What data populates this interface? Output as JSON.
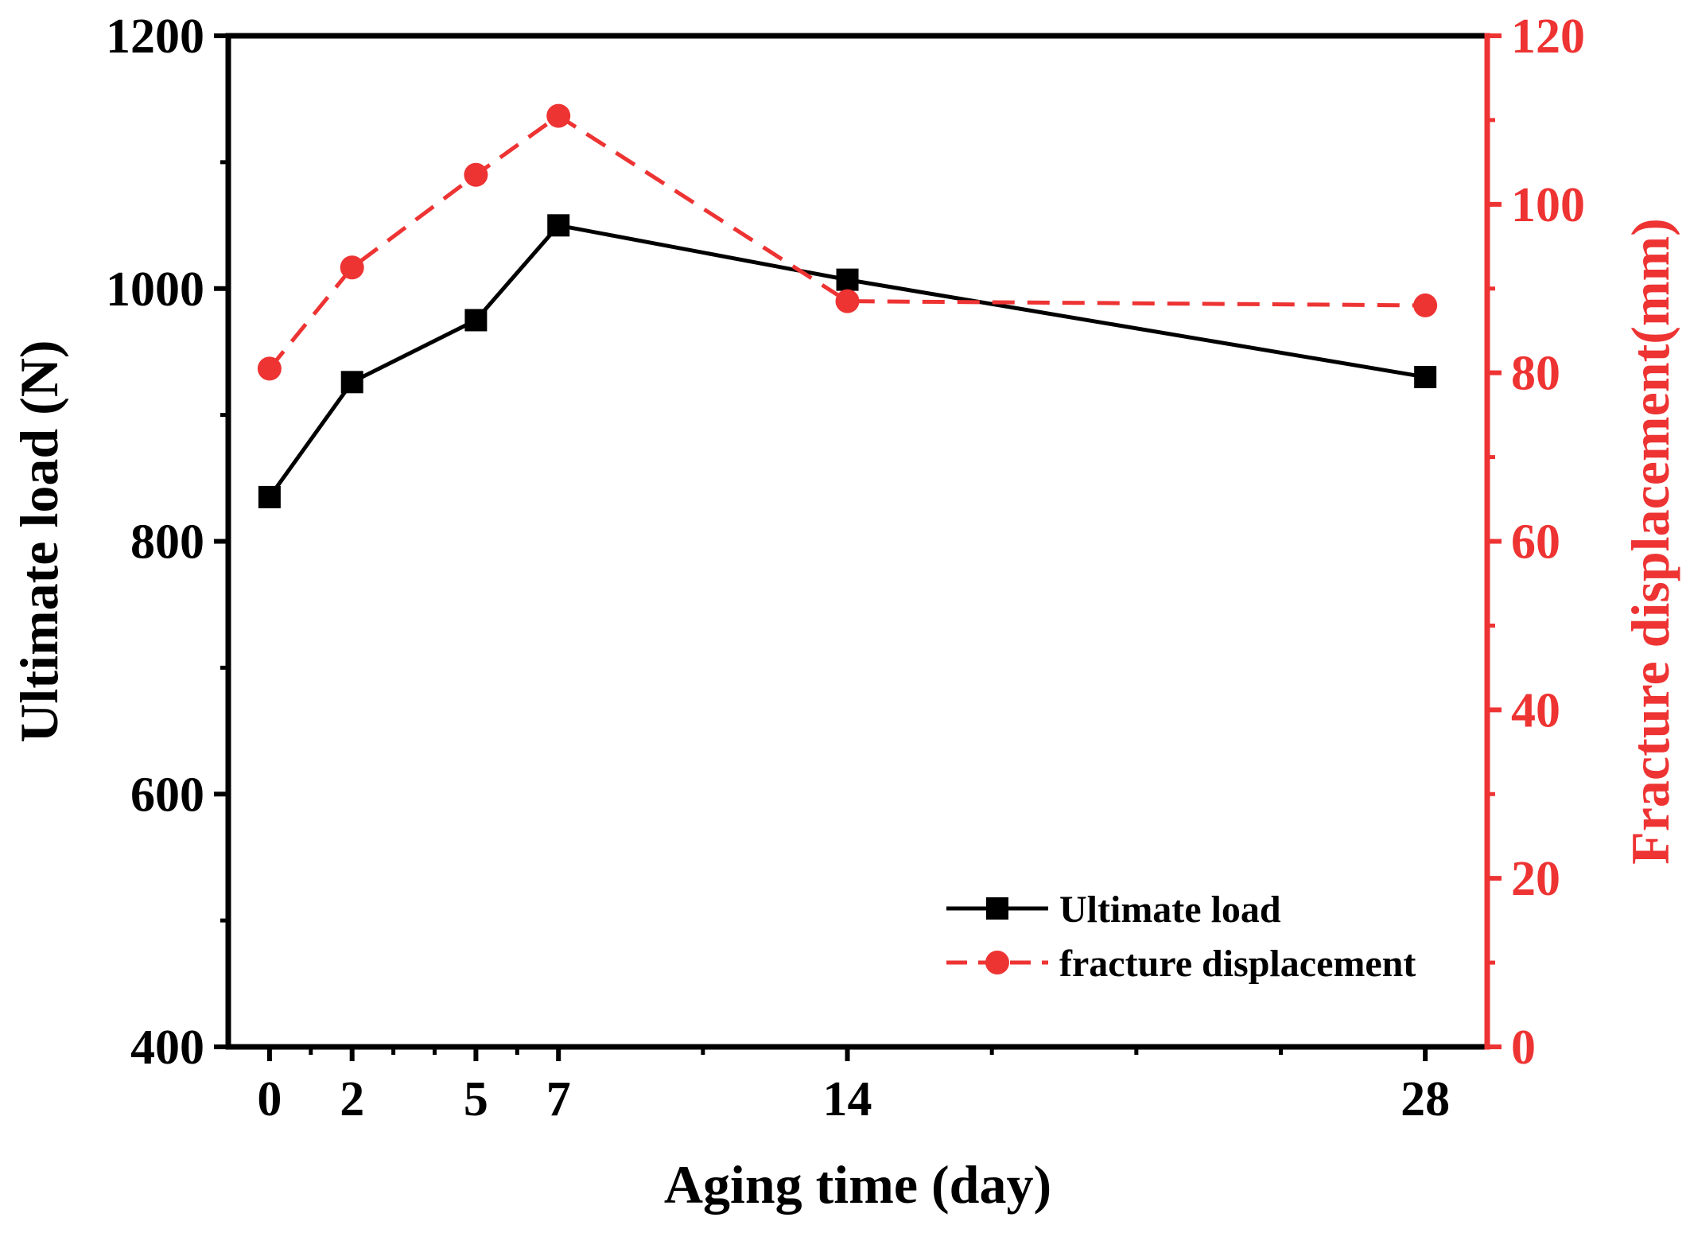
{
  "chart_data": {
    "type": "line",
    "title": "",
    "xlabel": "Aging time (day)",
    "ylabel_left": "Ultimate load (N)",
    "ylabel_right": "Fracture displacement(mm)",
    "x": [
      0,
      2,
      5,
      7,
      14,
      28
    ],
    "x_ticks": [
      0,
      2,
      5,
      7,
      14,
      28
    ],
    "xlim": [
      -1,
      29.5
    ],
    "ylim_left": [
      400,
      1200
    ],
    "ylim_right": [
      0,
      120
    ],
    "y_ticks_left": [
      400,
      600,
      800,
      1000,
      1200
    ],
    "y_ticks_right": [
      0,
      20,
      40,
      60,
      80,
      100,
      120
    ],
    "grid": false,
    "legend_position": "bottom-right",
    "series": [
      {
        "name": "Ultimate load",
        "axis": "left",
        "marker": "square",
        "line_style": "solid",
        "color": "#000000",
        "values": [
          835,
          926,
          975,
          1050,
          1007,
          930
        ]
      },
      {
        "name": "fracture displacement",
        "axis": "right",
        "marker": "circle",
        "line_style": "dashed",
        "color": "#ee3333",
        "values": [
          80.5,
          92.5,
          103.5,
          110.5,
          88.5,
          88.0
        ]
      }
    ]
  }
}
